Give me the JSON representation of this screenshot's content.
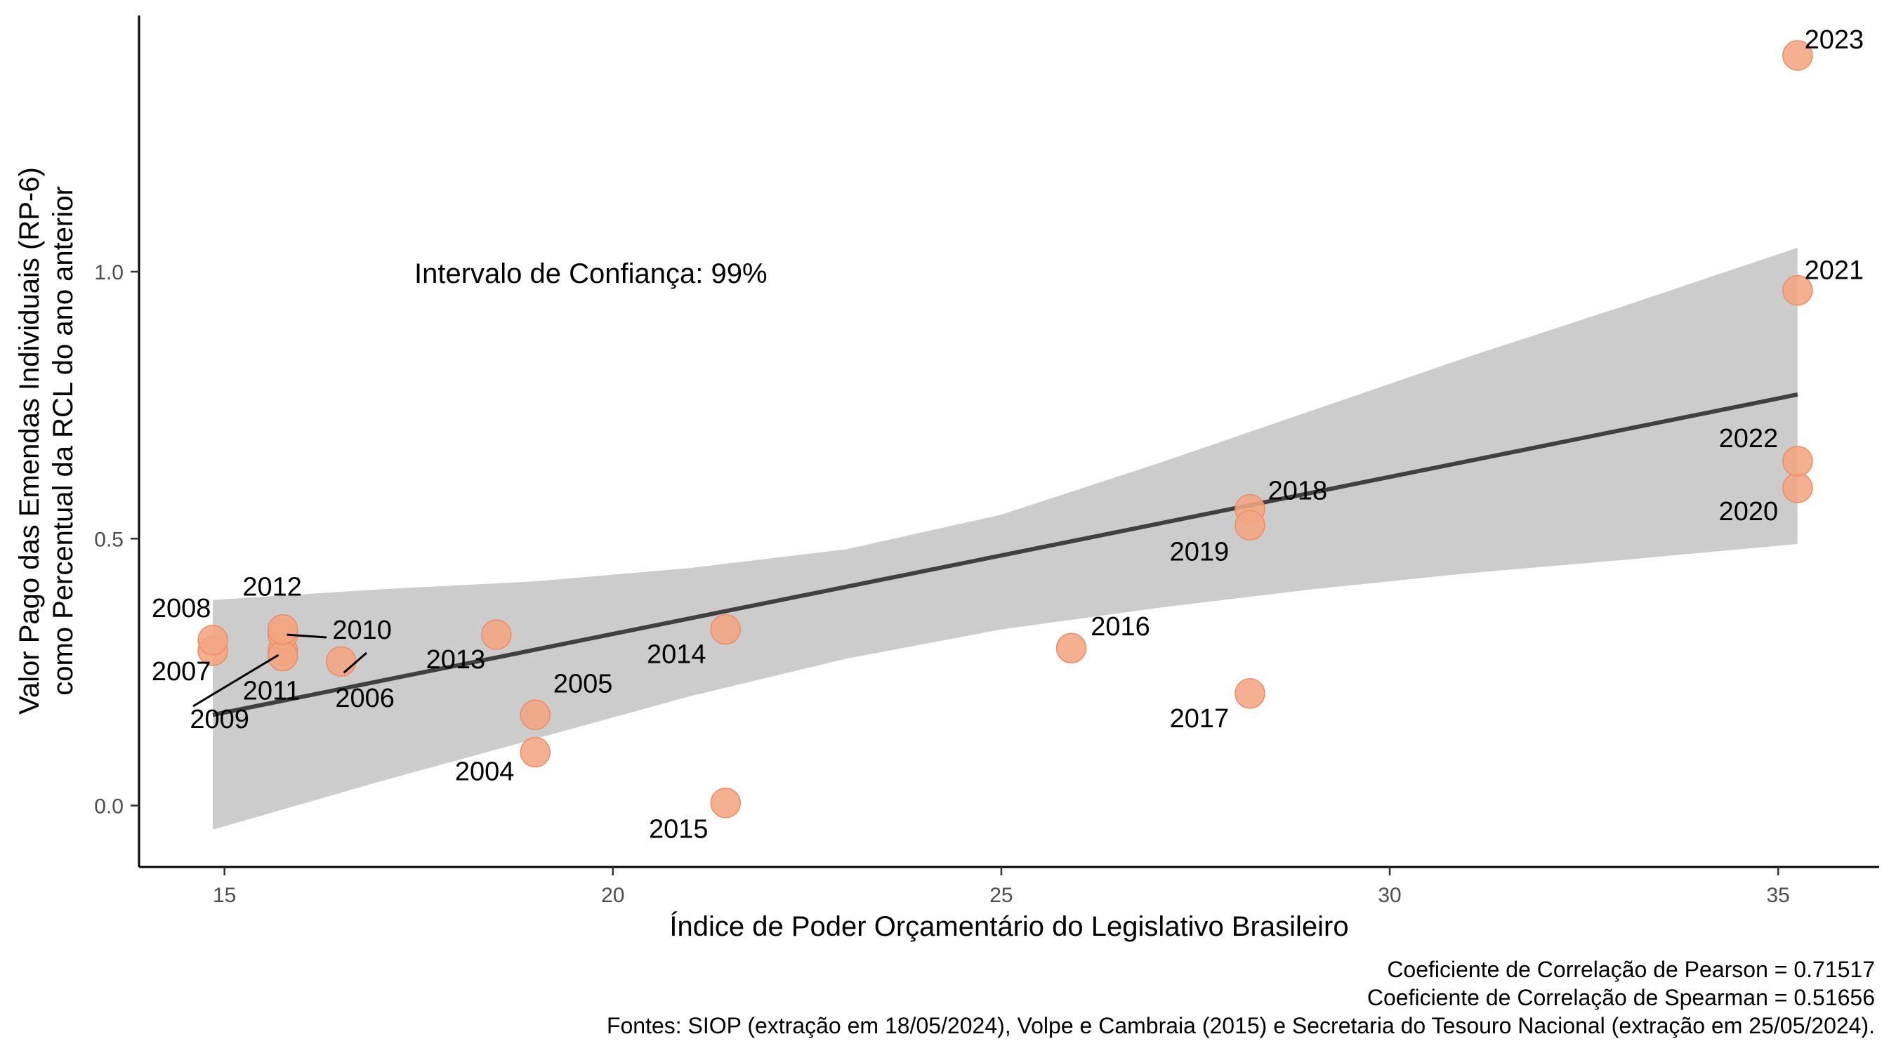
{
  "chart_data": {
    "type": "scatter",
    "title": "",
    "xlabel": "Índice de Poder Orçamentário do Legislativo Brasileiro",
    "ylabel_lines": [
      "Valor Pago das Emendas Individuais (RP-6)",
      "como Percentual da RCL do ano anterior"
    ],
    "xlim": [
      13.9,
      36.3
    ],
    "ylim": [
      -0.115,
      1.48
    ],
    "x_ticks": [
      15,
      20,
      25,
      30,
      35
    ],
    "x_tick_labels": [
      "15",
      "20",
      "25",
      "30",
      "35"
    ],
    "y_ticks": [
      0.0,
      0.5,
      1.0
    ],
    "y_tick_labels": [
      "0.0",
      "0.5",
      "1.0"
    ],
    "grid": false,
    "legend": "none",
    "point_color": "#F4A582",
    "point_edge_color": "#EF8A62",
    "trend_color": "#404040",
    "band_color": "#cccccc",
    "points": [
      {
        "year": "2004",
        "x": 19.0,
        "y": 0.1
      },
      {
        "year": "2005",
        "x": 19.0,
        "y": 0.17
      },
      {
        "year": "2006",
        "x": 16.5,
        "y": 0.27
      },
      {
        "year": "2007",
        "x": 14.85,
        "y": 0.29
      },
      {
        "year": "2008",
        "x": 14.85,
        "y": 0.31
      },
      {
        "year": "2009",
        "x": 15.75,
        "y": 0.29
      },
      {
        "year": "2010",
        "x": 15.75,
        "y": 0.32
      },
      {
        "year": "2011",
        "x": 15.75,
        "y": 0.28
      },
      {
        "year": "2012",
        "x": 15.75,
        "y": 0.33
      },
      {
        "year": "2013",
        "x": 18.5,
        "y": 0.32
      },
      {
        "year": "2014",
        "x": 21.45,
        "y": 0.33
      },
      {
        "year": "2015",
        "x": 21.45,
        "y": 0.005
      },
      {
        "year": "2016",
        "x": 25.9,
        "y": 0.295
      },
      {
        "year": "2017",
        "x": 28.2,
        "y": 0.21
      },
      {
        "year": "2018",
        "x": 28.2,
        "y": 0.555
      },
      {
        "year": "2019",
        "x": 28.2,
        "y": 0.525
      },
      {
        "year": "2020",
        "x": 35.25,
        "y": 0.595
      },
      {
        "year": "2021",
        "x": 35.25,
        "y": 0.965
      },
      {
        "year": "2022",
        "x": 35.25,
        "y": 0.645
      },
      {
        "year": "2023",
        "x": 35.25,
        "y": 1.405
      }
    ],
    "regression": {
      "x": [
        14.85,
        35.25
      ],
      "y": [
        0.17,
        0.77
      ]
    },
    "confidence_band": {
      "x": [
        14.85,
        17.0,
        19.0,
        21.0,
        23.0,
        25.0,
        27.0,
        29.0,
        31.0,
        33.0,
        35.25
      ],
      "lower": [
        -0.045,
        0.045,
        0.125,
        0.205,
        0.275,
        0.33,
        0.37,
        0.405,
        0.435,
        0.46,
        0.49
      ],
      "upper": [
        0.385,
        0.405,
        0.42,
        0.445,
        0.48,
        0.545,
        0.64,
        0.74,
        0.84,
        0.935,
        1.045
      ]
    },
    "annotations": [
      "Intervalo de Confiança: 99%"
    ],
    "caption_lines": [
      "Coeficiente de Correlação de Pearson = 0.71517",
      "Coeficiente de Correlação de Spearman = 0.51656",
      "Fontes: SIOP (extração em 18/05/2024), Volpe e Cambraia (2015) e Secretaria do Tesouro Nacional (extração em 25/05/2024)."
    ]
  }
}
